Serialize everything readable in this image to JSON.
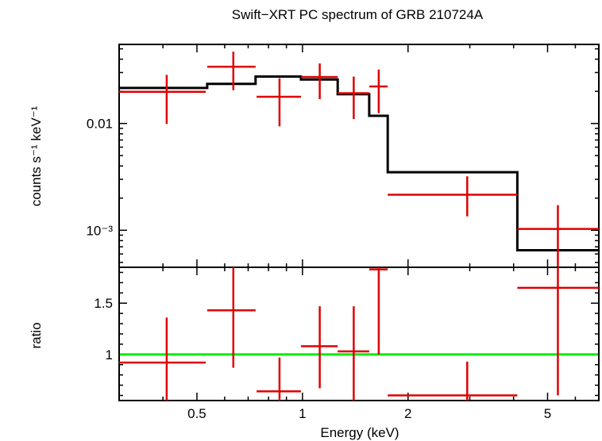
{
  "chart_data": {
    "type": "scatter",
    "title": "Swift−XRT PC spectrum of GRB 210724A",
    "xlabel": "Energy (keV)",
    "x_scale": "log",
    "xlim": [
      0.3,
      7.0
    ],
    "x_ticks": [
      {
        "value": 0.5,
        "label": "0.5"
      },
      {
        "value": 1,
        "label": "1"
      },
      {
        "value": 2,
        "label": "2"
      },
      {
        "value": 5,
        "label": "5"
      }
    ],
    "panels": [
      {
        "name": "spectrum",
        "ylabel": "counts s⁻¹ keV⁻¹",
        "y_scale": "log",
        "ylim": [
          0.00045,
          0.055
        ],
        "y_ticks": [
          {
            "value": 0.01,
            "label": "0.01"
          },
          {
            "value": 0.001,
            "label": "10⁻³"
          }
        ],
        "data": {
          "color": "#e00000",
          "points": [
            {
              "x": 0.41,
              "xlo": 0.3,
              "xhi": 0.53,
              "y": 0.0198,
              "ylo": 0.0099,
              "yhi": 0.0285
            },
            {
              "x": 0.635,
              "xlo": 0.535,
              "xhi": 0.735,
              "y": 0.034,
              "ylo": 0.0205,
              "yhi": 0.047
            },
            {
              "x": 0.86,
              "xlo": 0.74,
              "xhi": 0.99,
              "y": 0.0178,
              "ylo": 0.0094,
              "yhi": 0.0265
            },
            {
              "x": 1.12,
              "xlo": 0.99,
              "xhi": 1.26,
              "y": 0.0272,
              "ylo": 0.0169,
              "yhi": 0.0365
            },
            {
              "x": 1.4,
              "xlo": 1.26,
              "xhi": 1.55,
              "y": 0.0192,
              "ylo": 0.011,
              "yhi": 0.0275
            },
            {
              "x": 1.65,
              "xlo": 1.55,
              "xhi": 1.75,
              "y": 0.0222,
              "ylo": 0.0125,
              "yhi": 0.032
            },
            {
              "x": 2.95,
              "xlo": 1.75,
              "xhi": 4.1,
              "y": 0.00215,
              "ylo": 0.00135,
              "yhi": 0.0032
            },
            {
              "x": 5.35,
              "xlo": 4.1,
              "xhi": 7.0,
              "y": 0.00103,
              "ylo": 0.00045,
              "yhi": 0.00172
            }
          ]
        },
        "model": {
          "color": "#000000",
          "steps": [
            {
              "xlo": 0.3,
              "xhi": 0.535,
              "y": 0.0215
            },
            {
              "xlo": 0.535,
              "xhi": 0.735,
              "y": 0.0235
            },
            {
              "xlo": 0.735,
              "xhi": 0.99,
              "y": 0.0275
            },
            {
              "xlo": 0.99,
              "xhi": 1.26,
              "y": 0.0258
            },
            {
              "xlo": 1.26,
              "xhi": 1.55,
              "y": 0.0188
            },
            {
              "xlo": 1.55,
              "xhi": 1.75,
              "y": 0.0118
            },
            {
              "xlo": 1.75,
              "xhi": 4.1,
              "y": 0.0035
            },
            {
              "xlo": 4.1,
              "xhi": 7.0,
              "y": 0.00065
            }
          ]
        }
      },
      {
        "name": "ratio",
        "ylabel": "ratio",
        "y_scale": "linear",
        "ylim": [
          0.55,
          1.85
        ],
        "y_ticks": [
          {
            "value": 1,
            "label": "1"
          },
          {
            "value": 1.5,
            "label": "1.5"
          }
        ],
        "reference_line": {
          "y": 1,
          "color": "#00ee00"
        },
        "data": {
          "color": "#e00000",
          "points": [
            {
              "x": 0.41,
              "xlo": 0.3,
              "xhi": 0.53,
              "y": 0.92,
              "ylo": 0.55,
              "yhi": 1.36
            },
            {
              "x": 0.635,
              "xlo": 0.535,
              "xhi": 0.735,
              "y": 1.43,
              "ylo": 0.87,
              "yhi": 1.85
            },
            {
              "x": 0.86,
              "xlo": 0.74,
              "xhi": 0.99,
              "y": 0.64,
              "ylo": 0.55,
              "yhi": 0.97
            },
            {
              "x": 1.12,
              "xlo": 0.99,
              "xhi": 1.26,
              "y": 1.08,
              "ylo": 0.67,
              "yhi": 1.47
            },
            {
              "x": 1.4,
              "xlo": 1.26,
              "xhi": 1.55,
              "y": 1.03,
              "ylo": 0.55,
              "yhi": 1.47
            },
            {
              "x": 1.65,
              "xlo": 1.55,
              "xhi": 1.75,
              "y": 1.83,
              "ylo": 1.0,
              "yhi": 1.85
            },
            {
              "x": 2.95,
              "xlo": 1.75,
              "xhi": 4.1,
              "y": 0.6,
              "ylo": 0.55,
              "yhi": 0.93
            },
            {
              "x": 5.35,
              "xlo": 4.1,
              "xhi": 7.0,
              "y": 1.65,
              "ylo": 0.6,
              "yhi": 1.85
            }
          ]
        }
      }
    ]
  }
}
